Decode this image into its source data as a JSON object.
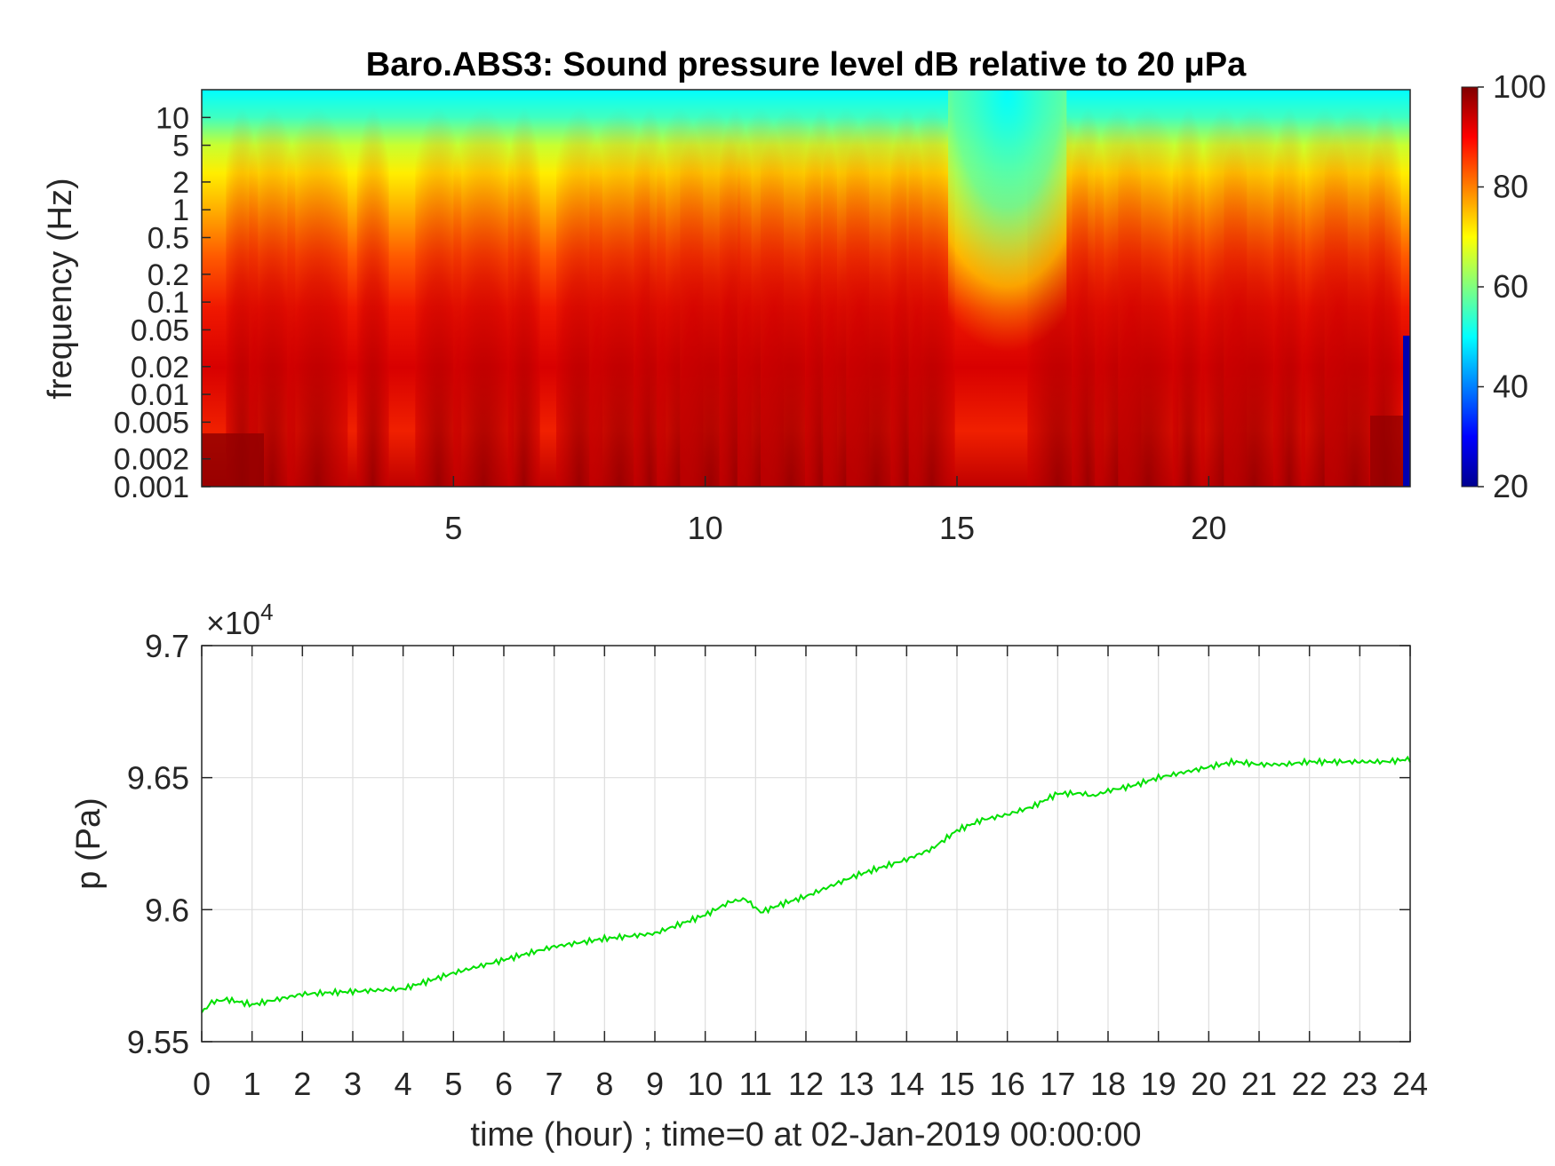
{
  "chart_data": [
    {
      "type": "heatmap",
      "title": "Baro.ABS3: Sound pressure level dB relative to 20 μPa",
      "xlabel": "",
      "ylabel": "frequency (Hz)",
      "xlim": [
        0,
        24
      ],
      "x_ticks": [
        5,
        10,
        15,
        20
      ],
      "y_scale": "log",
      "y_ticks": [
        "10",
        "5",
        "2",
        "1",
        "0.5",
        "0.2",
        "0.1",
        "0.05",
        "0.02",
        "0.01",
        "0.005",
        "0.002",
        "0.001"
      ],
      "colorbar": {
        "ticks": [
          100,
          80,
          60,
          40,
          20
        ],
        "range": [
          20,
          100
        ],
        "colormap": "jet"
      },
      "high_level_bursts_hour": [
        0.8,
        1.4,
        2.3,
        3.4,
        4.7,
        5.6,
        6.4,
        7.5,
        8.3,
        8.9,
        9.5,
        10.1,
        10.6,
        11.1,
        11.7,
        12.3,
        12.8,
        13.4,
        14.0,
        14.5,
        17.0,
        17.6,
        18.2,
        18.8,
        19.6,
        20.3,
        20.9,
        21.6,
        22.3,
        22.9,
        23.5
      ],
      "quiet_interval_hour": [
        15.0,
        17.0
      ],
      "quiet_color": "#00ffff",
      "loud_color": "#800000"
    },
    {
      "type": "line",
      "xlabel": "time (hour) ; time=0 at 02-Jan-2019 00:00:00",
      "ylabel": "p (Pa)",
      "y_exponent_label": "×10",
      "y_exponent": "4",
      "xlim": [
        0,
        24
      ],
      "ylim": [
        9.55,
        9.7
      ],
      "x_ticks": [
        0,
        1,
        2,
        3,
        4,
        5,
        6,
        7,
        8,
        9,
        10,
        11,
        12,
        13,
        14,
        15,
        16,
        17,
        18,
        19,
        20,
        21,
        22,
        23,
        24
      ],
      "y_ticks": [
        "9.7",
        "9.65",
        "9.6",
        "9.55"
      ],
      "grid": true,
      "line_color": "#00e000",
      "series": [
        {
          "x": [
            0,
            0.2,
            0.5,
            1,
            1.5,
            2,
            3,
            4,
            5,
            6,
            7,
            8,
            9,
            10,
            10.5,
            10.8,
            11.1,
            11.5,
            12,
            13,
            14,
            14.5,
            15,
            15.5,
            16,
            16.5,
            17,
            17.5,
            17.7,
            18,
            18.5,
            19,
            20,
            20.5,
            21,
            21.5,
            22,
            22.5,
            23,
            23.5,
            24
          ],
          "y": [
            9.561,
            9.565,
            9.566,
            9.564,
            9.566,
            9.568,
            9.569,
            9.57,
            9.576,
            9.581,
            9.586,
            9.589,
            9.591,
            9.598,
            9.603,
            9.604,
            9.599,
            9.602,
            9.605,
            9.613,
            9.619,
            9.623,
            9.63,
            9.634,
            9.636,
            9.639,
            9.644,
            9.644,
            9.643,
            9.645,
            9.647,
            9.65,
            9.654,
            9.656,
            9.655,
            9.655,
            9.656,
            9.656,
            9.656,
            9.656,
            9.657
          ]
        }
      ]
    }
  ]
}
